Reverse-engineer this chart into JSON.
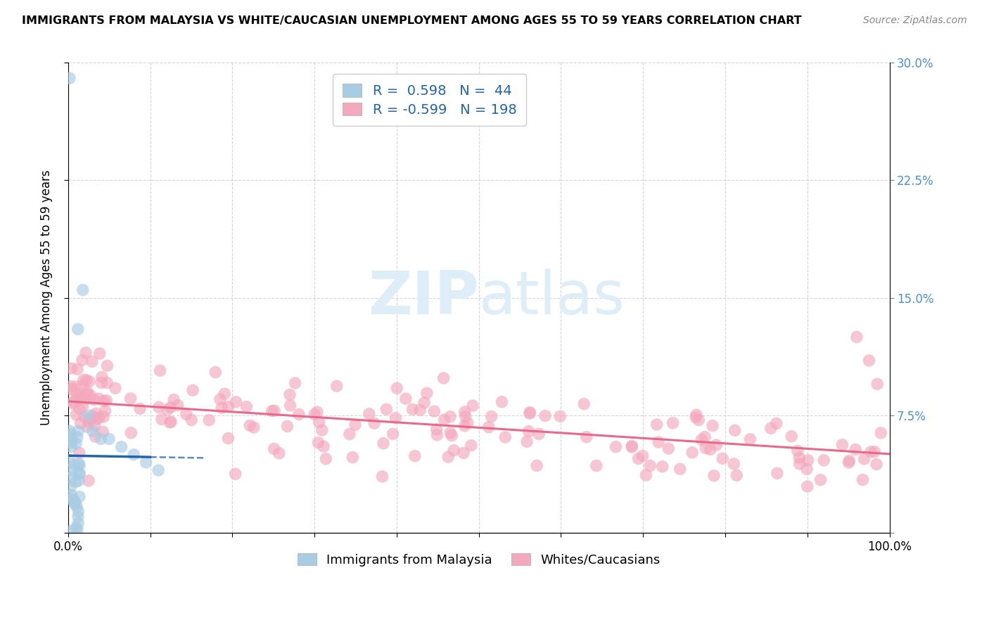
{
  "title": "IMMIGRANTS FROM MALAYSIA VS WHITE/CAUCASIAN UNEMPLOYMENT AMONG AGES 55 TO 59 YEARS CORRELATION CHART",
  "source": "Source: ZipAtlas.com",
  "ylabel": "Unemployment Among Ages 55 to 59 years",
  "xlim": [
    0,
    1.0
  ],
  "ylim": [
    0,
    0.3
  ],
  "blue_R": 0.598,
  "blue_N": 44,
  "pink_R": -0.599,
  "pink_N": 198,
  "blue_scatter_color": "#a8cce4",
  "pink_scatter_color": "#f4a8be",
  "blue_line_color": "#2166ac",
  "pink_line_color": "#e8698a",
  "legend_label_color": "#333333",
  "legend_value_color": "#2166ac",
  "right_axis_color": "#4a90d9",
  "watermark_color": "#ddeef8",
  "background_color": "#ffffff",
  "grid_color": "#cccccc",
  "title_fontsize": 11.5,
  "source_fontsize": 10,
  "ylabel_fontsize": 12,
  "tick_fontsize": 12,
  "legend_fontsize": 14,
  "scatter_size": 160,
  "scatter_alpha": 0.65
}
